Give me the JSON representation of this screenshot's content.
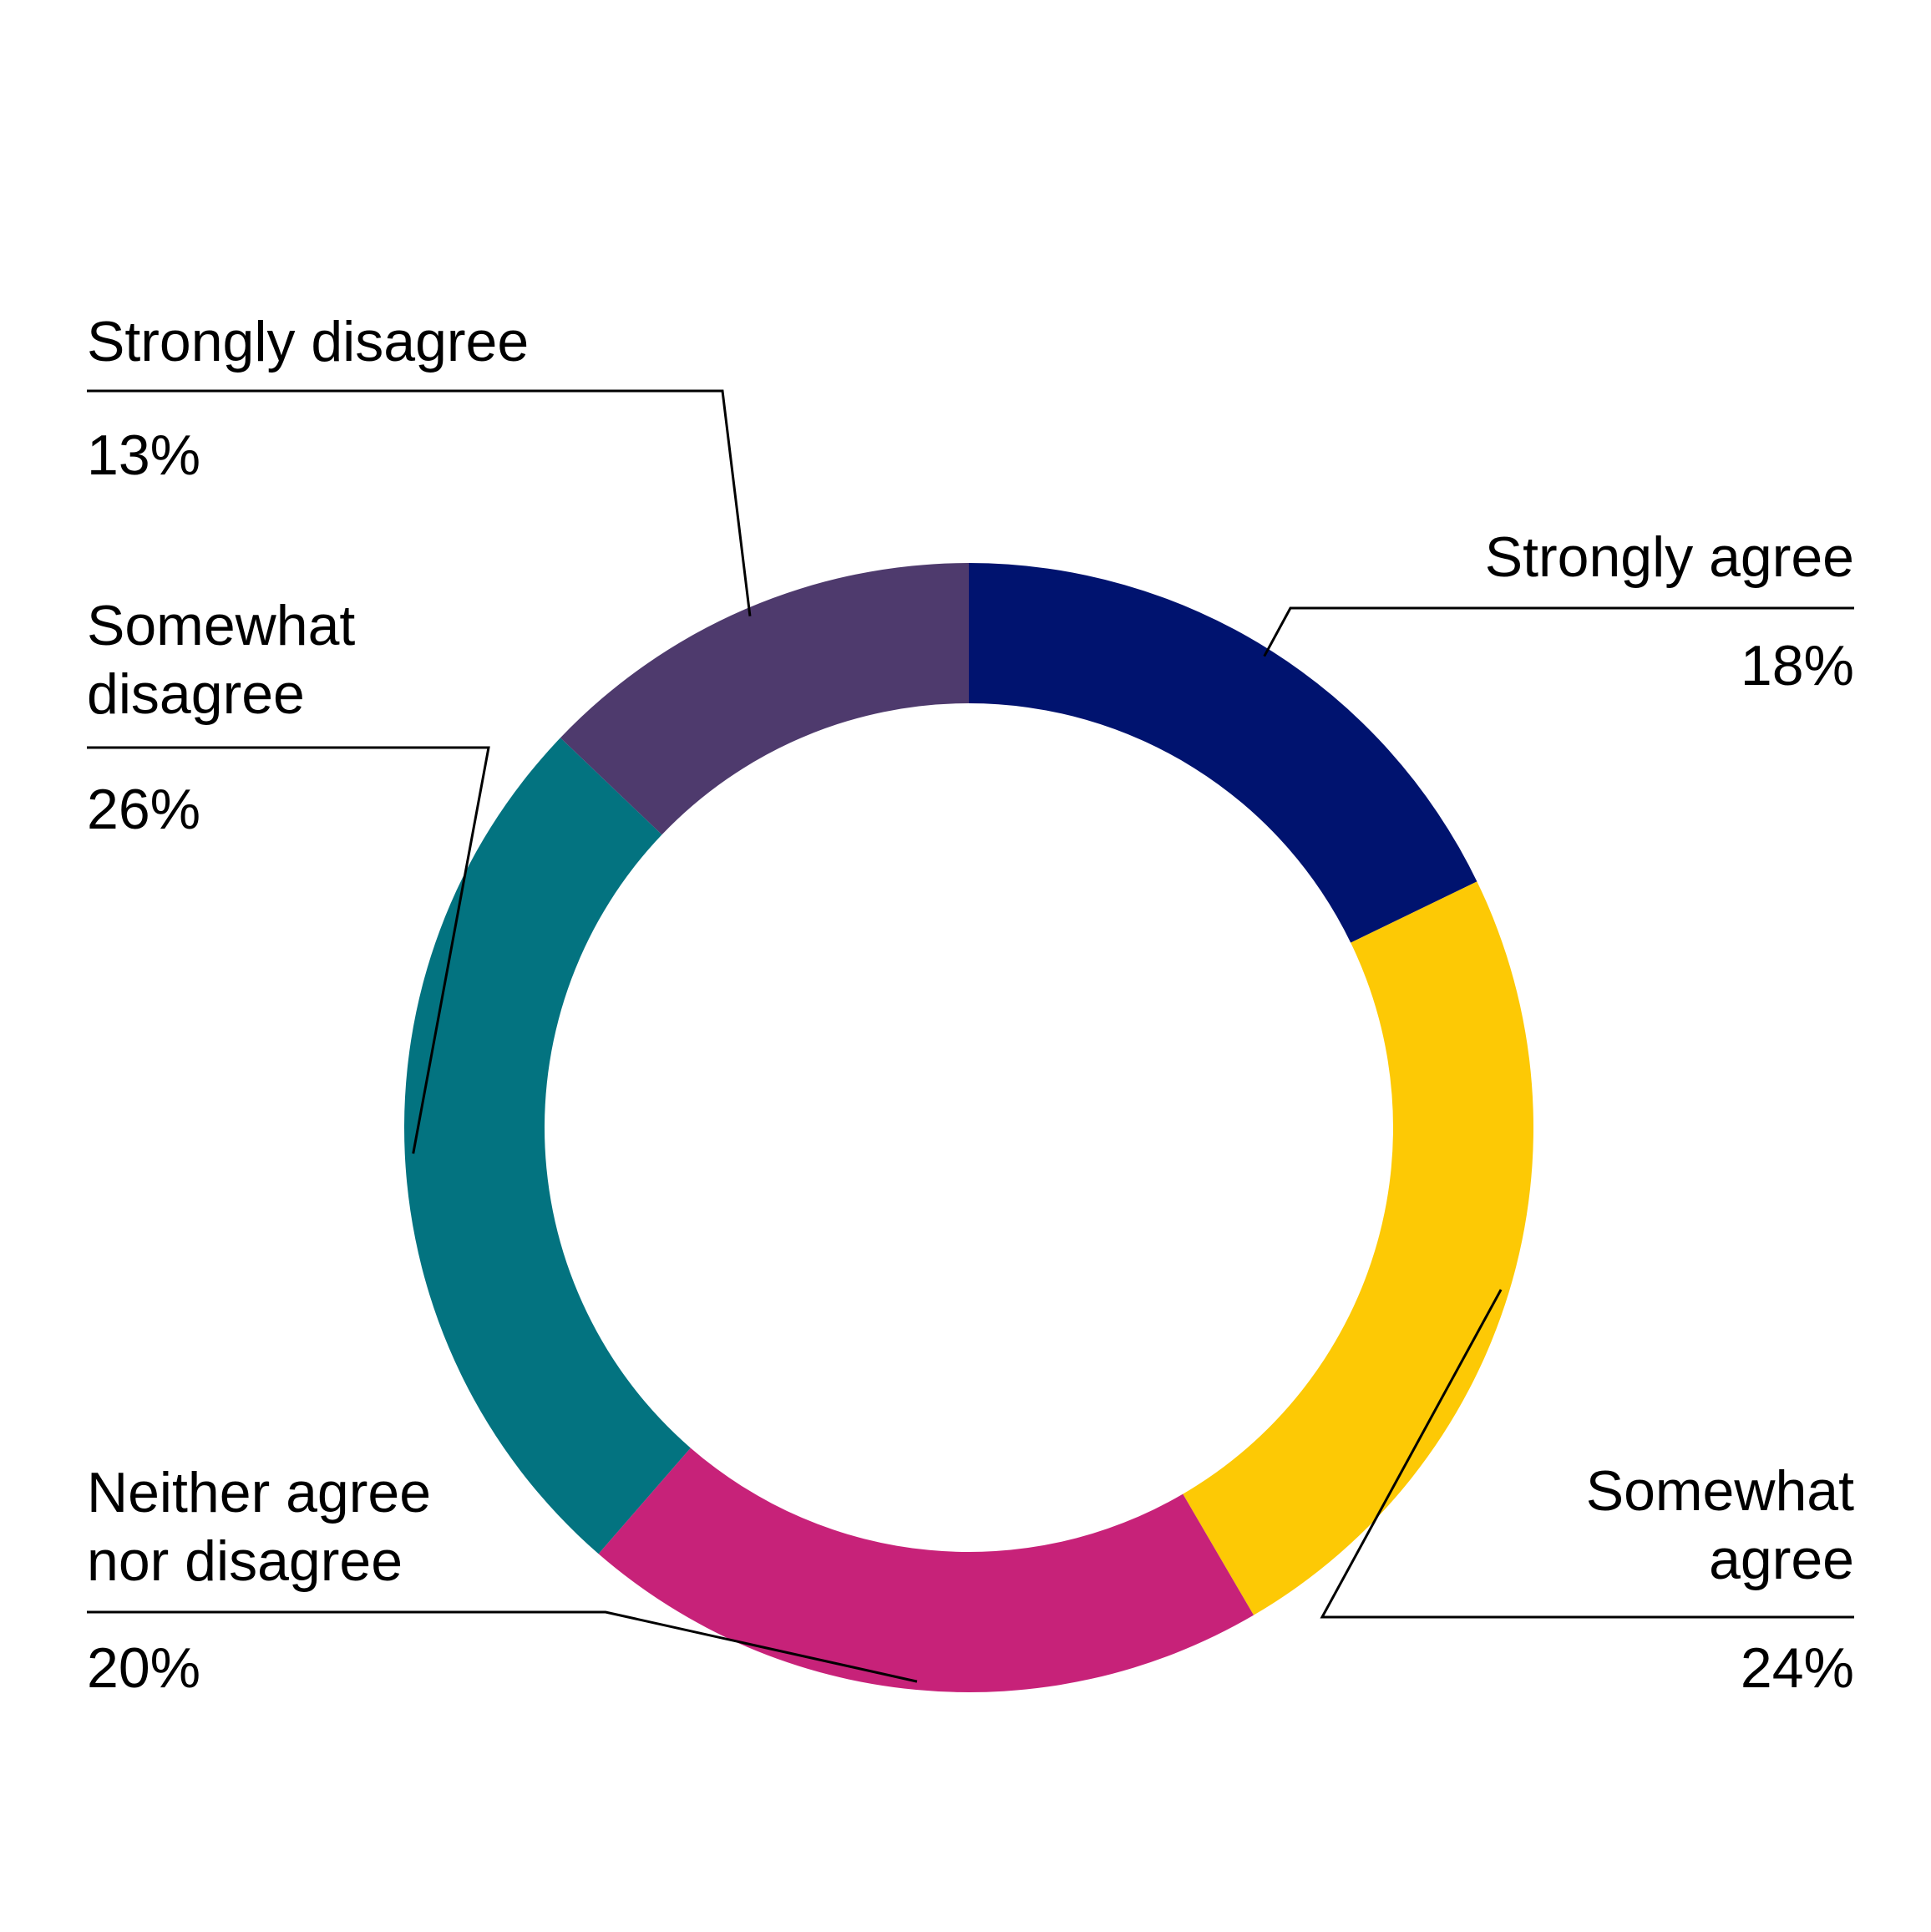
{
  "chart_data": {
    "type": "pie",
    "variant": "donut",
    "slices": [
      {
        "label": "Strongly agree",
        "label_lines": [
          "Strongly agree"
        ],
        "value": 18,
        "value_label": "18%",
        "color": "#00136f"
      },
      {
        "label": "Somewhat agree",
        "label_lines": [
          "Somewhat",
          "agree"
        ],
        "value": 24,
        "value_label": "24%",
        "color": "#fdc905"
      },
      {
        "label": "Neither agree nor disagree",
        "label_lines": [
          "Neither agree",
          "nor disagree"
        ],
        "value": 20,
        "value_label": "20%",
        "color": "#c72279"
      },
      {
        "label": "Somewhat disagree",
        "label_lines": [
          "Somewhat",
          "disagree"
        ],
        "value": 26,
        "value_label": "26%",
        "color": "#037380"
      },
      {
        "label": "Strongly disagree",
        "label_lines": [
          "Strongly disagree"
        ],
        "value": 13,
        "value_label": "13%",
        "color": "#4e3a6d"
      }
    ],
    "legend": "none",
    "labels": "callouts"
  }
}
